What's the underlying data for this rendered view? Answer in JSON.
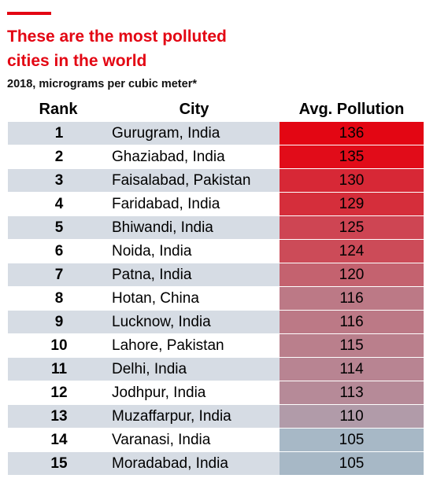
{
  "header": {
    "title_line1": "These are the most polluted",
    "title_line2": "cities in the world",
    "subtitle": "2018, micrograms per cubic meter*"
  },
  "columns": {
    "rank": "Rank",
    "city": "City",
    "pollution": "Avg. Pollution"
  },
  "colors": {
    "accent": "#e30613",
    "row_shade": "#d6dce4",
    "value_high": "#e30613",
    "value_low": "#a7b8c6"
  },
  "chart_data": {
    "type": "table",
    "title": "These are the most polluted cities in the world",
    "subtitle": "2018, micrograms per cubic meter*",
    "columns": [
      "Rank",
      "City",
      "Avg. Pollution"
    ],
    "rows": [
      {
        "rank": "1",
        "city": "Gurugram, India",
        "value": 136
      },
      {
        "rank": "2",
        "city": "Ghaziabad, India",
        "value": 135
      },
      {
        "rank": "3",
        "city": "Faisalabad, Pakistan",
        "value": 130
      },
      {
        "rank": "4",
        "city": "Faridabad, India",
        "value": 129
      },
      {
        "rank": "5",
        "city": "Bhiwandi, India",
        "value": 125
      },
      {
        "rank": "6",
        "city": "Noida, India",
        "value": 124
      },
      {
        "rank": "7",
        "city": "Patna, India",
        "value": 120
      },
      {
        "rank": "8",
        "city": "Hotan, China",
        "value": 116
      },
      {
        "rank": "9",
        "city": "Lucknow, India",
        "value": 116
      },
      {
        "rank": "10",
        "city": "Lahore, Pakistan",
        "value": 115
      },
      {
        "rank": "11",
        "city": "Delhi, India",
        "value": 114
      },
      {
        "rank": "12",
        "city": "Jodhpur, India",
        "value": 113
      },
      {
        "rank": "13",
        "city": "Muzaffarpur, India",
        "value": 110
      },
      {
        "rank": "14",
        "city": "Varanasi, India",
        "value": 105
      },
      {
        "rank": "15",
        "city": "Moradabad, India",
        "value": 105
      }
    ]
  }
}
